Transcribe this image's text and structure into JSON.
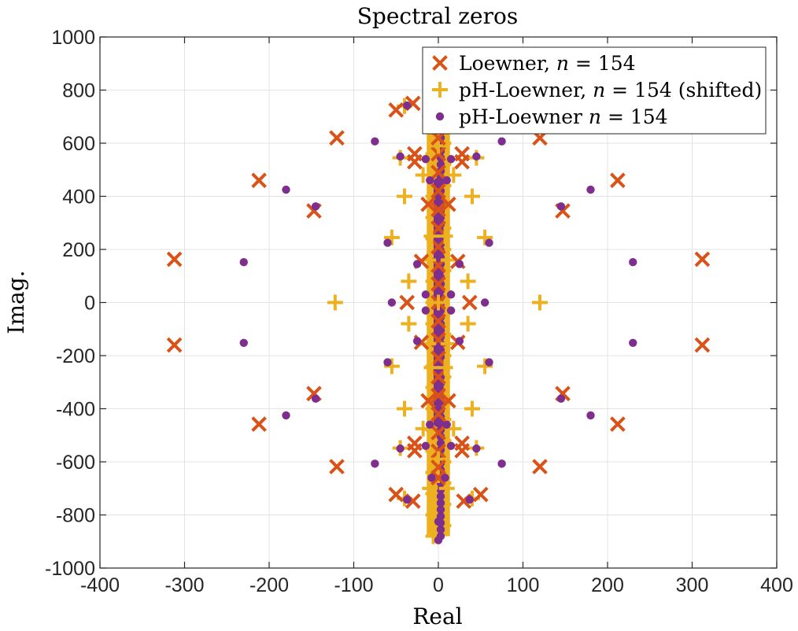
{
  "chart_data": {
    "type": "scatter",
    "title": "Spectral zeros",
    "xlabel": "Real",
    "ylabel": "Imag.",
    "xlim": [
      -400,
      400
    ],
    "ylim": [
      -1000,
      1000
    ],
    "xticks": [
      "-400",
      "-300",
      "-200",
      "-100",
      "0",
      "100",
      "200",
      "300",
      "400"
    ],
    "yticks": [
      "1000",
      "800",
      "600",
      "400",
      "200",
      "0",
      "-200",
      "-400",
      "-600",
      "-800",
      "-1000"
    ],
    "grid": true,
    "legend_position": "top-right",
    "legend": [
      {
        "prefix": "Loewner, ",
        "suffix": " = 154",
        "marker": "x"
      },
      {
        "prefix": "pH-Loewner, ",
        "suffix": " = 154 (shifted)",
        "marker": "plus"
      },
      {
        "prefix": "pH-Loewner ",
        "suffix": " = 154",
        "marker": "dot"
      }
    ],
    "legend_variable": "n",
    "colors": {
      "loewner": "#D95319",
      "shifted": "#EDB120",
      "ph": "#7E2F8E"
    },
    "series": [
      {
        "name": "Loewner, n = 154",
        "marker": "x",
        "points": [
          [
            -312,
            163
          ],
          [
            -312,
            -160
          ],
          [
            312,
            163
          ],
          [
            312,
            -160
          ],
          [
            -212,
            460
          ],
          [
            -212,
            -458
          ],
          [
            212,
            460
          ],
          [
            212,
            -458
          ],
          [
            -147,
            345
          ],
          [
            -147,
            -343
          ],
          [
            147,
            345
          ],
          [
            147,
            -343
          ],
          [
            -120,
            620
          ],
          [
            -120,
            -618
          ],
          [
            120,
            620
          ],
          [
            120,
            -618
          ],
          [
            -50,
            725
          ],
          [
            -50,
            -723
          ],
          [
            50,
            725
          ],
          [
            50,
            -723
          ],
          [
            -30,
            750
          ],
          [
            -30,
            -748
          ],
          [
            30,
            750
          ],
          [
            30,
            -748
          ],
          [
            -28,
            560
          ],
          [
            -28,
            -558
          ],
          [
            28,
            560
          ],
          [
            28,
            -558
          ],
          [
            -28,
            530
          ],
          [
            -28,
            -530
          ],
          [
            28,
            530
          ],
          [
            28,
            -530
          ],
          [
            -37,
            0
          ],
          [
            37,
            0
          ],
          [
            -20,
            155
          ],
          [
            -20,
            -150
          ],
          [
            23,
            155
          ],
          [
            23,
            -150
          ],
          [
            -12,
            370
          ],
          [
            -12,
            -370
          ],
          [
            12,
            370
          ],
          [
            12,
            -370
          ],
          [
            0,
            620
          ],
          [
            0,
            -620
          ],
          [
            0,
            660
          ],
          [
            0,
            -660
          ]
        ]
      },
      {
        "name": "pH-Loewner, n = 154 (shifted)",
        "marker": "plus",
        "points": [
          [
            -122,
            0
          ],
          [
            120,
            0
          ],
          [
            -40,
            400
          ],
          [
            -40,
            -400
          ],
          [
            40,
            400
          ],
          [
            40,
            -400
          ],
          [
            -55,
            245
          ],
          [
            -55,
            -240
          ],
          [
            55,
            245
          ],
          [
            55,
            -240
          ],
          [
            -35,
            80
          ],
          [
            -35,
            -80
          ],
          [
            35,
            80
          ],
          [
            35,
            -80
          ],
          [
            -45,
            545
          ],
          [
            -45,
            -548
          ],
          [
            45,
            545
          ],
          [
            45,
            -548
          ],
          [
            -18,
            480
          ],
          [
            -18,
            -475
          ],
          [
            18,
            480
          ],
          [
            18,
            -475
          ],
          [
            -40,
            740
          ],
          [
            -40,
            -738
          ],
          [
            40,
            740
          ],
          [
            40,
            -738
          ],
          [
            -10,
            700
          ],
          [
            -10,
            -700
          ],
          [
            10,
            700
          ],
          [
            10,
            -700
          ],
          [
            -8,
            250
          ],
          [
            -8,
            -245
          ],
          [
            8,
            250
          ],
          [
            8,
            -245
          ],
          [
            -12,
            160
          ],
          [
            -12,
            -155
          ],
          [
            12,
            160
          ],
          [
            12,
            -155
          ],
          [
            0,
            590
          ],
          [
            0,
            -590
          ],
          [
            0,
            650
          ],
          [
            0,
            -650
          ],
          [
            0,
            0
          ]
        ]
      },
      {
        "name": "pH-Loewner n = 154",
        "marker": "dot",
        "points": [
          [
            -230,
            152
          ],
          [
            -230,
            -152
          ],
          [
            230,
            152
          ],
          [
            230,
            -152
          ],
          [
            -180,
            425
          ],
          [
            -180,
            -425
          ],
          [
            180,
            425
          ],
          [
            180,
            -425
          ],
          [
            -145,
            362
          ],
          [
            -145,
            -362
          ],
          [
            145,
            362
          ],
          [
            145,
            -362
          ],
          [
            -75,
            607
          ],
          [
            -75,
            -607
          ],
          [
            75,
            607
          ],
          [
            75,
            -607
          ],
          [
            -60,
            225
          ],
          [
            -60,
            -225
          ],
          [
            60,
            225
          ],
          [
            60,
            -225
          ],
          [
            -55,
            0
          ],
          [
            55,
            0
          ],
          [
            -37,
            742
          ],
          [
            -37,
            -742
          ],
          [
            37,
            742
          ],
          [
            37,
            -742
          ],
          [
            -45,
            550
          ],
          [
            -45,
            -550
          ],
          [
            45,
            550
          ],
          [
            45,
            -550
          ],
          [
            -15,
            540
          ],
          [
            -15,
            -540
          ],
          [
            15,
            540
          ],
          [
            15,
            -540
          ],
          [
            -25,
            145
          ],
          [
            -25,
            -145
          ],
          [
            25,
            145
          ],
          [
            25,
            -145
          ],
          [
            -15,
            30
          ],
          [
            -15,
            -30
          ],
          [
            15,
            30
          ],
          [
            15,
            -30
          ],
          [
            -10,
            460
          ],
          [
            -10,
            -460
          ],
          [
            10,
            460
          ],
          [
            10,
            -460
          ],
          [
            -8,
            660
          ],
          [
            -8,
            -660
          ],
          [
            8,
            660
          ],
          [
            8,
            -660
          ],
          [
            0,
            825
          ],
          [
            0,
            -825
          ],
          [
            0,
            895
          ],
          [
            0,
            -895
          ]
        ]
      }
    ],
    "central_column": {
      "x": [
        -10,
        10
      ],
      "y": [
        -880,
        880
      ]
    }
  }
}
